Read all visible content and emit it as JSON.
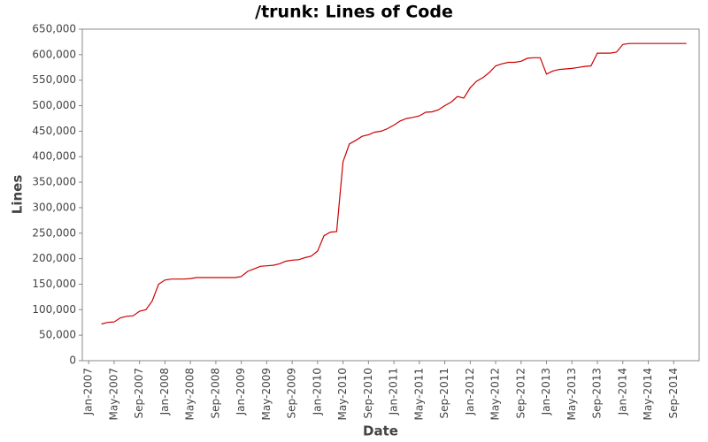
{
  "chart_data": {
    "type": "line",
    "title": "/trunk: Lines of Code",
    "x_label": "Date",
    "y_label": "Lines",
    "x": [
      "2007-03",
      "2007-04",
      "2007-05",
      "2007-06",
      "2007-07",
      "2007-08",
      "2007-09",
      "2007-10",
      "2007-11",
      "2007-12",
      "2008-01",
      "2008-02",
      "2008-03",
      "2008-04",
      "2008-05",
      "2008-06",
      "2008-07",
      "2008-08",
      "2008-09",
      "2008-10",
      "2008-11",
      "2008-12",
      "2009-01",
      "2009-02",
      "2009-03",
      "2009-04",
      "2009-05",
      "2009-06",
      "2009-07",
      "2009-08",
      "2009-09",
      "2009-10",
      "2009-11",
      "2009-12",
      "2010-01",
      "2010-02",
      "2010-03",
      "2010-04",
      "2010-05",
      "2010-06",
      "2010-07",
      "2010-08",
      "2010-09",
      "2010-10",
      "2010-11",
      "2010-12",
      "2011-01",
      "2011-02",
      "2011-03",
      "2011-04",
      "2011-05",
      "2011-06",
      "2011-07",
      "2011-08",
      "2011-09",
      "2011-10",
      "2011-11",
      "2011-12",
      "2012-01",
      "2012-02",
      "2012-03",
      "2012-04",
      "2012-05",
      "2012-06",
      "2012-07",
      "2012-08",
      "2012-09",
      "2012-10",
      "2012-11",
      "2012-12",
      "2013-01",
      "2013-02",
      "2013-03",
      "2013-04",
      "2013-05",
      "2013-06",
      "2013-07",
      "2013-08",
      "2013-09",
      "2013-10",
      "2013-11",
      "2013-12",
      "2014-01",
      "2014-02",
      "2014-03",
      "2014-04",
      "2014-05",
      "2014-06",
      "2014-07",
      "2014-08",
      "2014-09",
      "2014-10",
      "2014-11"
    ],
    "series": [
      {
        "name": "Lines",
        "color": "#cc0000",
        "values": [
          72000,
          75000,
          76000,
          84000,
          87000,
          88000,
          97000,
          100000,
          117000,
          150000,
          158000,
          160000,
          160000,
          160000,
          161000,
          163000,
          163000,
          163000,
          163000,
          163000,
          163000,
          163000,
          165000,
          175000,
          180000,
          185000,
          186000,
          187000,
          190000,
          195000,
          197000,
          198000,
          202000,
          205000,
          215000,
          245000,
          252000,
          253000,
          390000,
          425000,
          432000,
          440000,
          443000,
          448000,
          450000,
          455000,
          462000,
          470000,
          475000,
          477000,
          480000,
          487000,
          488000,
          492000,
          500000,
          507000,
          518000,
          515000,
          535000,
          548000,
          555000,
          565000,
          578000,
          582000,
          585000,
          585000,
          587000,
          593000,
          594000,
          594000,
          562000,
          568000,
          571000,
          572000,
          573000,
          575000,
          577000,
          578000,
          603000,
          603000,
          603000,
          605000,
          620000,
          622000,
          622000,
          622000,
          622000,
          622000,
          622000,
          622000,
          622000,
          622000,
          622000
        ]
      }
    ],
    "xlim": [
      "2006-12",
      "2015-01"
    ],
    "xticks": [
      {
        "value": "2007-01",
        "label": "Jan-2007"
      },
      {
        "value": "2007-05",
        "label": "May-2007"
      },
      {
        "value": "2007-09",
        "label": "Sep-2007"
      },
      {
        "value": "2008-01",
        "label": "Jan-2008"
      },
      {
        "value": "2008-05",
        "label": "May-2008"
      },
      {
        "value": "2008-09",
        "label": "Sep-2008"
      },
      {
        "value": "2009-01",
        "label": "Jan-2009"
      },
      {
        "value": "2009-05",
        "label": "May-2009"
      },
      {
        "value": "2009-09",
        "label": "Sep-2009"
      },
      {
        "value": "2010-01",
        "label": "Jan-2010"
      },
      {
        "value": "2010-05",
        "label": "May-2010"
      },
      {
        "value": "2010-09",
        "label": "Sep-2010"
      },
      {
        "value": "2011-01",
        "label": "Jan-2011"
      },
      {
        "value": "2011-05",
        "label": "May-2011"
      },
      {
        "value": "2011-09",
        "label": "Sep-2011"
      },
      {
        "value": "2012-01",
        "label": "Jan-2012"
      },
      {
        "value": "2012-05",
        "label": "May-2012"
      },
      {
        "value": "2012-09",
        "label": "Sep-2012"
      },
      {
        "value": "2013-01",
        "label": "Jan-2013"
      },
      {
        "value": "2013-05",
        "label": "May-2013"
      },
      {
        "value": "2013-09",
        "label": "Sep-2013"
      },
      {
        "value": "2014-01",
        "label": "Jan-2014"
      },
      {
        "value": "2014-05",
        "label": "May-2014"
      },
      {
        "value": "2014-09",
        "label": "Sep-2014"
      }
    ],
    "ylim": [
      0,
      650000
    ],
    "yticks": [
      0,
      {
        "value": 50000,
        "label": "50,000"
      },
      {
        "value": 100000,
        "label": "100,000"
      },
      {
        "value": 150000,
        "label": "150,000"
      },
      {
        "value": 200000,
        "label": "200,000"
      },
      {
        "value": 250000,
        "label": "250,000"
      },
      {
        "value": 300000,
        "label": "300,000"
      },
      {
        "value": 350000,
        "label": "350,000"
      },
      {
        "value": 400000,
        "label": "400,000"
      },
      {
        "value": 450000,
        "label": "450,000"
      },
      {
        "value": 500000,
        "label": "500,000"
      },
      {
        "value": 550000,
        "label": "550,000"
      },
      {
        "value": 600000,
        "label": "600,000"
      },
      {
        "value": 650000,
        "label": "650,000"
      }
    ],
    "grid": false
  }
}
